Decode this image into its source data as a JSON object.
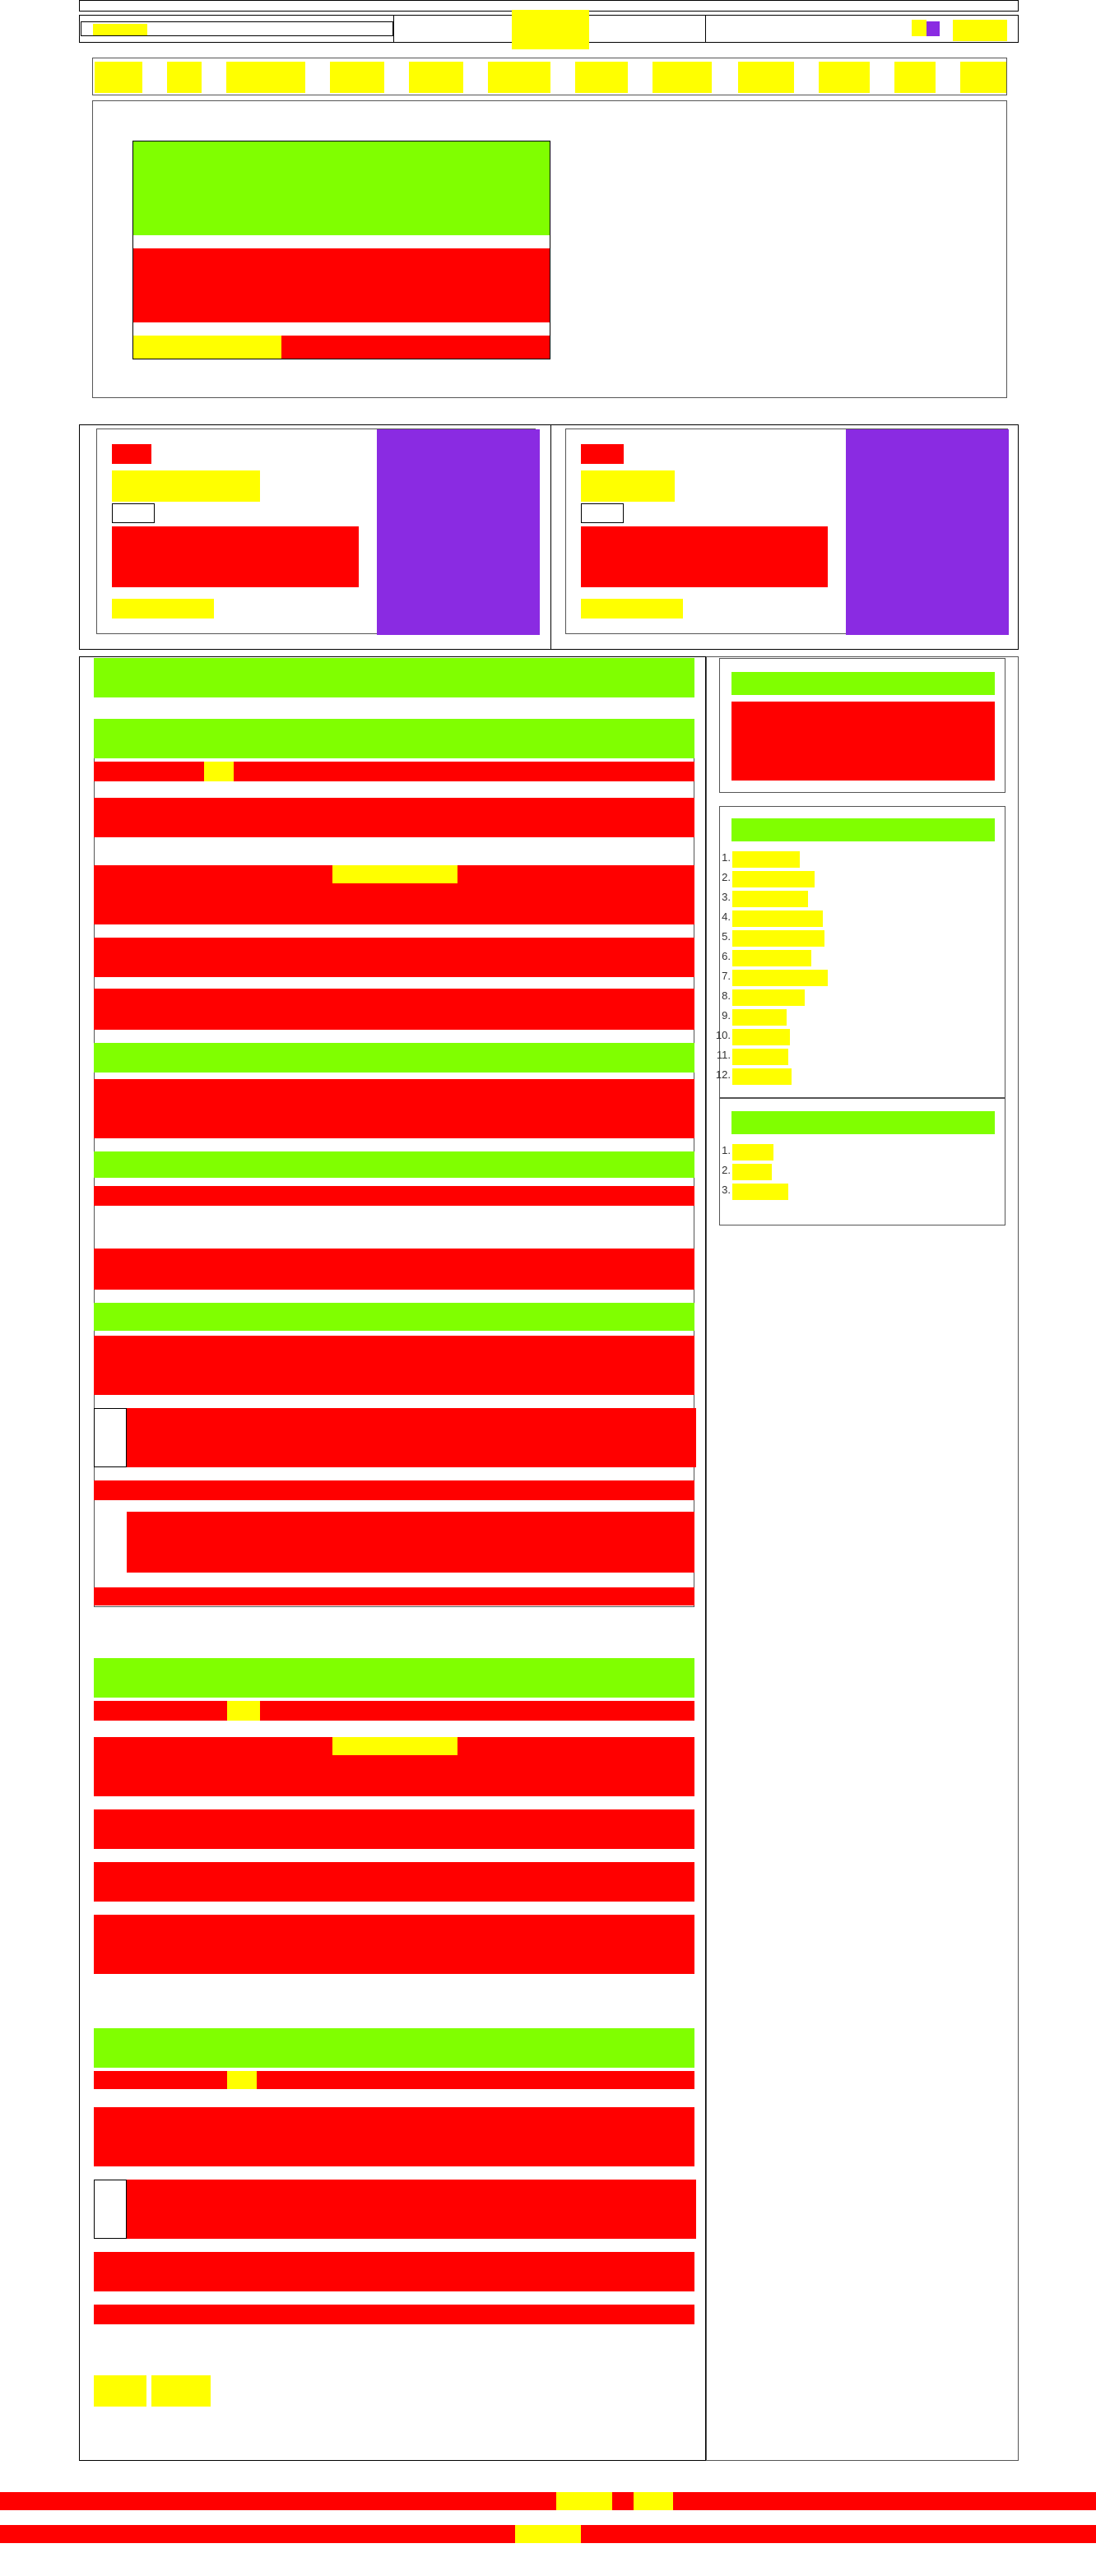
{
  "header": {
    "search_box": {
      "label": ""
    },
    "logo": {
      "label": ""
    },
    "account": {
      "label": ""
    }
  },
  "nav": {
    "items": [
      {
        "label": ""
      },
      {
        "label": ""
      },
      {
        "label": ""
      },
      {
        "label": ""
      },
      {
        "label": ""
      },
      {
        "label": ""
      },
      {
        "label": ""
      },
      {
        "label": ""
      },
      {
        "label": ""
      },
      {
        "label": ""
      },
      {
        "label": ""
      },
      {
        "label": ""
      }
    ]
  },
  "hero": {
    "cta_label": ""
  },
  "promo_cards": [
    {
      "kicker": "",
      "title": "",
      "body": "",
      "link": ""
    },
    {
      "kicker": "",
      "title": "",
      "body": "",
      "link": ""
    }
  ],
  "sidebar": {
    "list_a": {
      "heading": "",
      "items": [
        {
          "num": "1.",
          "label": ""
        },
        {
          "num": "2.",
          "label": ""
        },
        {
          "num": "3.",
          "label": ""
        },
        {
          "num": "4.",
          "label": ""
        },
        {
          "num": "5.",
          "label": ""
        },
        {
          "num": "6.",
          "label": ""
        },
        {
          "num": "7.",
          "label": ""
        },
        {
          "num": "8.",
          "label": ""
        },
        {
          "num": "9.",
          "label": ""
        },
        {
          "num": "10.",
          "label": ""
        },
        {
          "num": "11.",
          "label": ""
        },
        {
          "num": "12.",
          "label": ""
        }
      ]
    },
    "list_b": {
      "heading": "",
      "items": [
        {
          "num": "1.",
          "label": ""
        },
        {
          "num": "2.",
          "label": ""
        },
        {
          "num": "3.",
          "label": ""
        }
      ]
    }
  },
  "pagination": {
    "prev": "",
    "next": ""
  },
  "footer": {
    "link_a": "",
    "link_b": "",
    "copyright": ""
  }
}
